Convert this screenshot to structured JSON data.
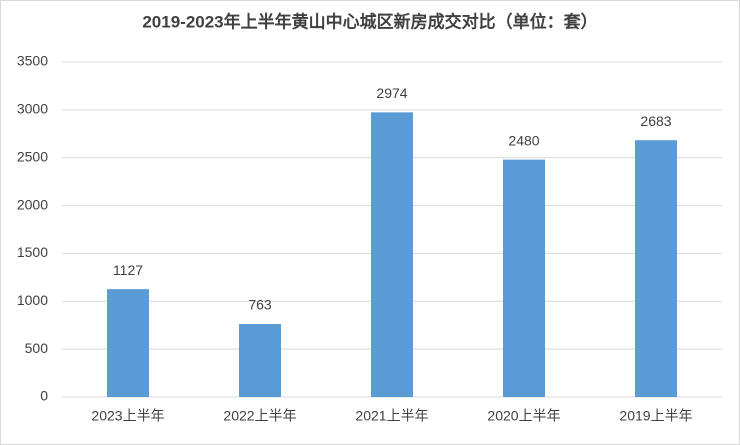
{
  "chart_data": {
    "type": "bar",
    "title": "2019-2023年上半年黄山中心城区新房成交对比（单位：套）",
    "categories": [
      "2023上半年",
      "2022上半年",
      "2021上半年",
      "2020上半年",
      "2019上半年"
    ],
    "values": [
      1127,
      763,
      2974,
      2480,
      2683
    ],
    "color": "#5b9bd5",
    "ylim": [
      0,
      3500
    ],
    "yticks": [
      0,
      500,
      1000,
      1500,
      2000,
      2500,
      3000,
      3500
    ],
    "grid": true
  }
}
